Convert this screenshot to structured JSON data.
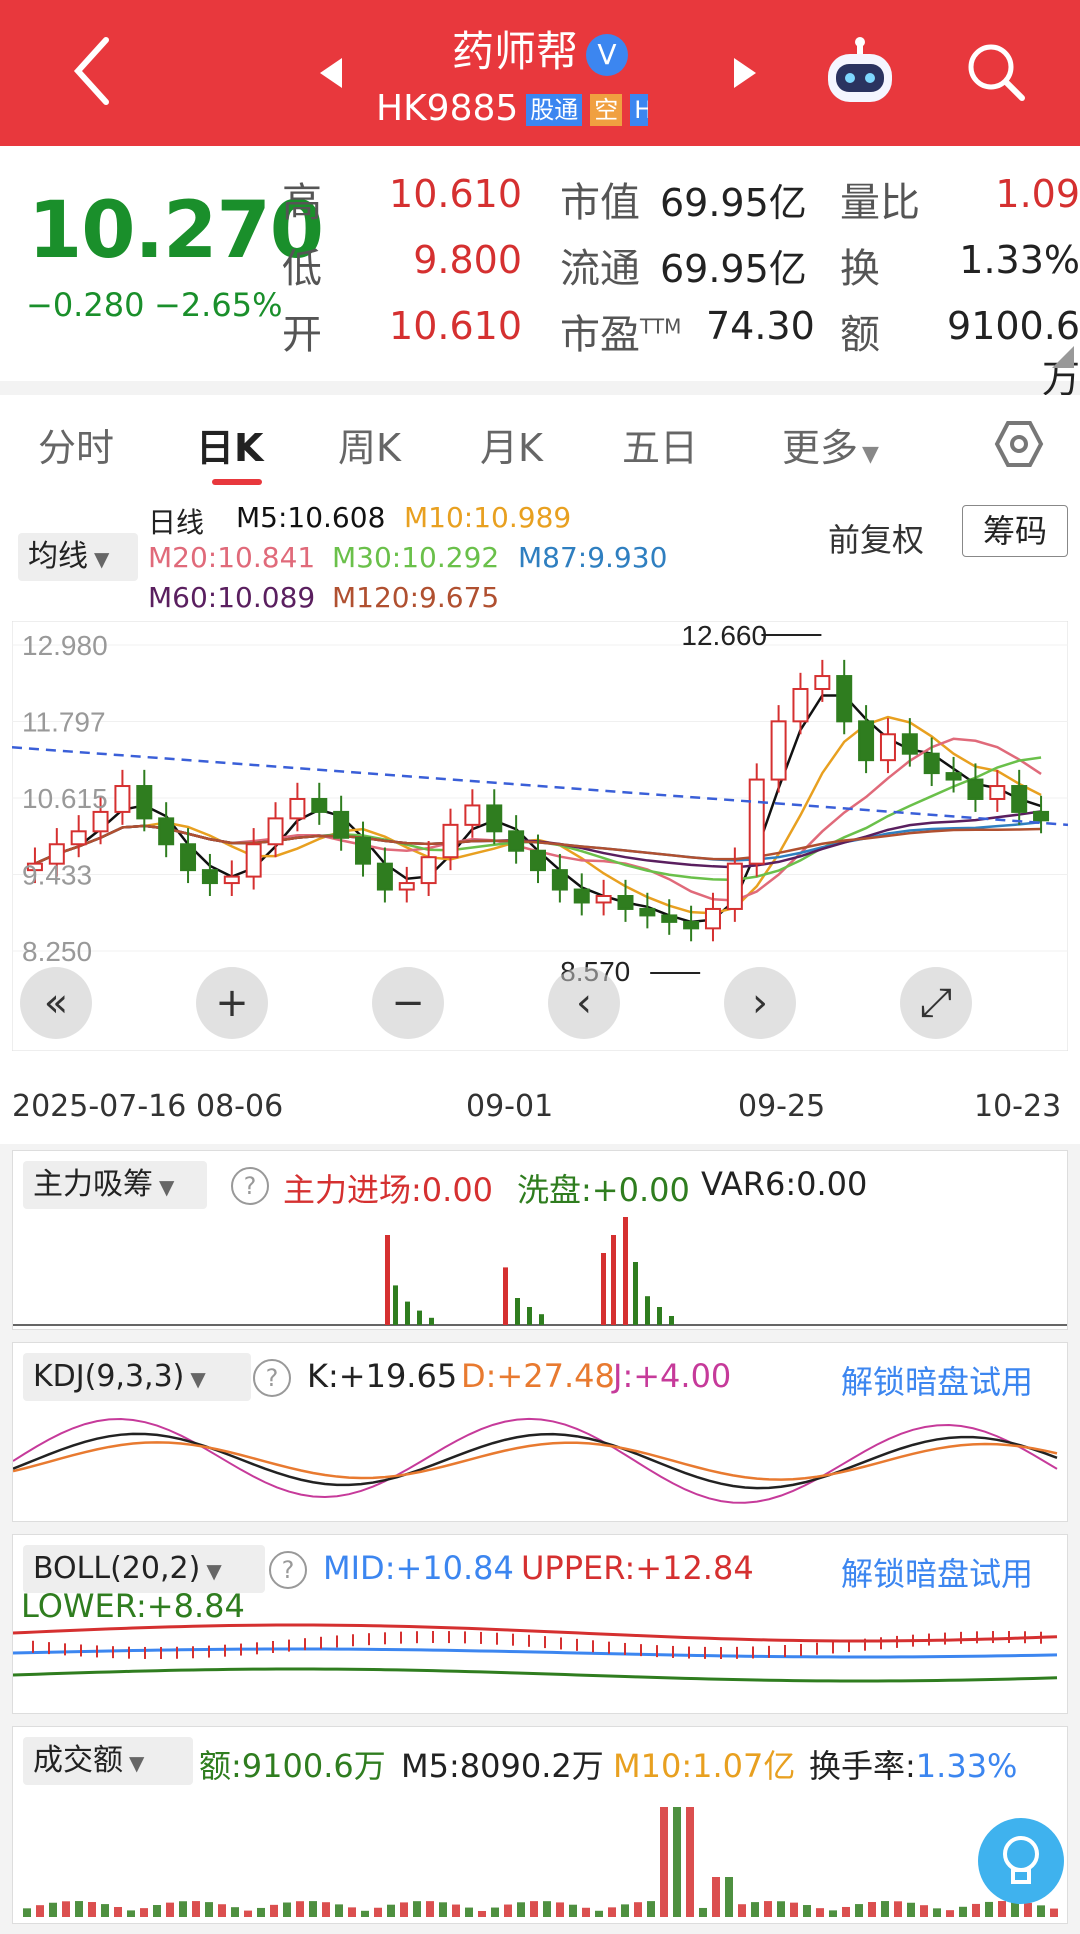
{
  "header": {
    "title": "药师帮",
    "verified_mark": "V",
    "code": "HK9885",
    "tag_stock_connect": "股通",
    "tag_short": "空",
    "tag_h": "H",
    "back_icon": "chevron-left-icon",
    "robot_icon": "robot-icon",
    "search_icon": "search-icon"
  },
  "quote": {
    "price": "10.270",
    "change": "−0.280",
    "change_pct": "−2.65%",
    "high_label": "高",
    "high": "10.610",
    "low_label": "低",
    "low": "9.800",
    "open_label": "开",
    "open": "10.610",
    "mcap_label": "市值",
    "mcap": "69.95亿",
    "float_label": "流通",
    "float": "69.95亿",
    "pe_label": "市盈",
    "pe_suffix": "TTM",
    "pe": "74.30",
    "vr_label": "量比",
    "vr": "1.09",
    "turn_label": "换",
    "turn": "1.33%",
    "amt_label": "额",
    "amt": "9100.6万"
  },
  "tabs": [
    {
      "label": "分时"
    },
    {
      "label": "日K"
    },
    {
      "label": "周K"
    },
    {
      "label": "月K"
    },
    {
      "label": "五日"
    },
    {
      "label": "更多"
    }
  ],
  "ma": {
    "selector": "均线",
    "daily": "日线",
    "m5": "M5:10.608",
    "m10": "M10:10.989",
    "m20": "M20:10.841",
    "m30": "M30:10.292",
    "m87": "M87:9.930",
    "m60": "M60:10.089",
    "m120": "M120:9.675",
    "fq": "前复权",
    "chip": "筹码"
  },
  "kchart": {
    "y_ticks": [
      "12.980",
      "11.797",
      "10.615",
      "9.433",
      "8.250"
    ],
    "x_ticks": [
      "2025-07-16",
      "08-06",
      "09-01",
      "09-25",
      "10-23"
    ],
    "high_mark": "12.660",
    "low_mark": "8.570"
  },
  "colors": {
    "up": "#d53030",
    "down": "#2f7d1f",
    "m5": "#111111",
    "m10": "#e8a020",
    "m20": "#e06a7a",
    "m30": "#6ac04a",
    "m87": "#2f7fc0",
    "m60": "#5a1f5f",
    "m120": "#b05030",
    "trend": "#3a5fd8"
  },
  "zl": {
    "selector": "主力吸筹",
    "in": "主力进场:0.00",
    "wash": "洗盘:+0.00",
    "var6": "VAR6:0.00"
  },
  "kdj": {
    "selector": "KDJ(9,3,3)",
    "k": "K:+19.65",
    "d": "D:+27.48",
    "j": "J:+4.00",
    "unlock": "解锁暗盘试用"
  },
  "boll": {
    "selector": "BOLL(20,2)",
    "mid": "MID:+10.84",
    "upper": "UPPER:+12.84",
    "lower": "LOWER:+8.84",
    "unlock": "解锁暗盘试用"
  },
  "vol": {
    "selector": "成交额",
    "amt": "额:9100.6万",
    "m5": "M5:8090.2万",
    "m10": "M10:1.07亿",
    "turn_label": "换手率:",
    "turn": "1.33%"
  }
}
